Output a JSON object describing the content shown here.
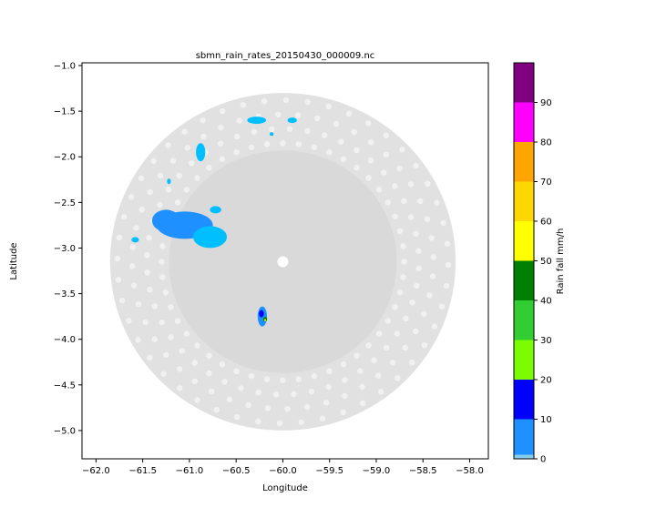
{
  "chart_data": {
    "type": "heatmap",
    "title": "sbmn_rain_rates_20150430_000009.nc",
    "xlabel": "Longitude",
    "ylabel": "Latitude",
    "xlim": [
      -62.15,
      -57.8
    ],
    "ylim": [
      -5.31,
      -0.97
    ],
    "xticks": [
      -62.0,
      -61.5,
      -61.0,
      -60.5,
      -60.0,
      -59.5,
      -59.0,
      -58.5,
      -58.0
    ],
    "xtick_labels": [
      "−62.0",
      "−61.5",
      "−61.0",
      "−60.5",
      "−60.0",
      "−59.5",
      "−59.0",
      "−58.5",
      "−58.0"
    ],
    "yticks": [
      -1.0,
      -1.5,
      -2.0,
      -2.5,
      -3.0,
      -3.5,
      -4.0,
      -4.5,
      -5.0
    ],
    "ytick_labels": [
      "−1.0",
      "−1.5",
      "−2.0",
      "−2.5",
      "−3.0",
      "−3.5",
      "−4.0",
      "−4.5",
      "−5.0"
    ],
    "radar": {
      "center_lon": -60.0,
      "center_lat": -3.15,
      "radius_deg": 1.85,
      "inner_radius_deg": 1.22,
      "no_rain_color": "#d9d9d9"
    },
    "colorbar": {
      "label": "Rain fall mm/h",
      "min": 0,
      "max": 100,
      "ticks": [
        0,
        10,
        20,
        30,
        40,
        50,
        60,
        70,
        80,
        90
      ],
      "tick_labels": [
        "0",
        "10",
        "20",
        "30",
        "40",
        "50",
        "60",
        "70",
        "80",
        "90"
      ],
      "levels": [
        {
          "from": 0,
          "to": 1,
          "color": "#87ceeb"
        },
        {
          "from": 1,
          "to": 10,
          "color": "#1e90ff"
        },
        {
          "from": 10,
          "to": 20,
          "color": "#0000ff"
        },
        {
          "from": 20,
          "to": 30,
          "color": "#7cfc00"
        },
        {
          "from": 30,
          "to": 40,
          "color": "#32cd32"
        },
        {
          "from": 40,
          "to": 50,
          "color": "#008000"
        },
        {
          "from": 50,
          "to": 60,
          "color": "#ffff00"
        },
        {
          "from": 60,
          "to": 70,
          "color": "#ffd700"
        },
        {
          "from": 70,
          "to": 80,
          "color": "#ffa500"
        },
        {
          "from": 80,
          "to": 90,
          "color": "#ff00ff"
        },
        {
          "from": 90,
          "to": 100,
          "color": "#800080"
        }
      ]
    },
    "rain_cells": [
      {
        "lon": -61.05,
        "lat": -2.75,
        "rx": 0.3,
        "ry": 0.15,
        "color": "#1e90ff"
      },
      {
        "lon": -61.25,
        "lat": -2.7,
        "rx": 0.15,
        "ry": 0.12,
        "color": "#1e90ff"
      },
      {
        "lon": -60.78,
        "lat": -2.88,
        "rx": 0.18,
        "ry": 0.12,
        "color": "#00bfff"
      },
      {
        "lon": -60.72,
        "lat": -2.58,
        "rx": 0.06,
        "ry": 0.04,
        "color": "#00bfff"
      },
      {
        "lon": -61.58,
        "lat": -2.91,
        "rx": 0.04,
        "ry": 0.03,
        "color": "#00bfff"
      },
      {
        "lon": -61.22,
        "lat": -2.27,
        "rx": 0.02,
        "ry": 0.03,
        "color": "#00bfff"
      },
      {
        "lon": -60.88,
        "lat": -1.95,
        "rx": 0.05,
        "ry": 0.1,
        "color": "#00bfff"
      },
      {
        "lon": -60.28,
        "lat": -1.6,
        "rx": 0.1,
        "ry": 0.04,
        "color": "#00bfff"
      },
      {
        "lon": -59.9,
        "lat": -1.6,
        "rx": 0.05,
        "ry": 0.03,
        "color": "#00bfff"
      },
      {
        "lon": -60.12,
        "lat": -1.75,
        "rx": 0.02,
        "ry": 0.02,
        "color": "#00bfff"
      },
      {
        "lon": -60.22,
        "lat": -3.75,
        "rx": 0.05,
        "ry": 0.11,
        "color": "#1e90ff"
      },
      {
        "lon": -60.23,
        "lat": -3.72,
        "rx": 0.025,
        "ry": 0.04,
        "color": "#0000ff"
      },
      {
        "lon": -60.19,
        "lat": -3.78,
        "rx": 0.02,
        "ry": 0.025,
        "color": "#008000"
      },
      {
        "lon": -60.19,
        "lat": -3.79,
        "rx": 0.01,
        "ry": 0.012,
        "color": "#ffff00"
      }
    ]
  }
}
